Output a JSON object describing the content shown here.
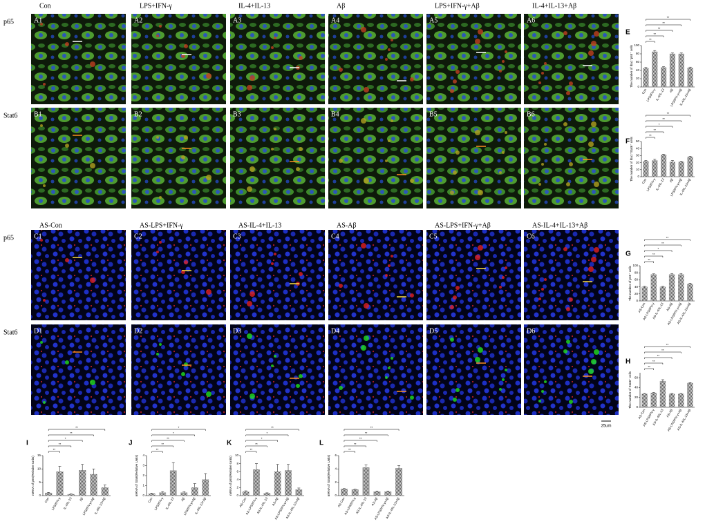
{
  "figure": {
    "top": {
      "columns": [
        "Con",
        "LPS+IFN-γ",
        "IL-4+IL-13",
        "Aβ",
        "LPS+IFN-γ+Aβ",
        "IL-4+IL-13+Aβ"
      ],
      "rows": [
        {
          "label": "p65",
          "panels": [
            "A1",
            "A2",
            "A3",
            "A4",
            "A5",
            "A6"
          ]
        },
        {
          "label": "Stat6",
          "panels": [
            "B1",
            "B2",
            "B3",
            "B4",
            "B5",
            "B6"
          ]
        }
      ]
    },
    "bottom": {
      "columns": [
        "AS-Con",
        "AS-LPS+IFN-γ",
        "AS-IL-4+IL-13",
        "AS-Aβ",
        "AS-LPS+IFN-γ+Aβ",
        "AS-IL-4+IL-13+Aβ"
      ],
      "rows": [
        {
          "label": "p65",
          "panels": [
            "C1",
            "C2",
            "C3",
            "C4",
            "C5",
            "C6"
          ]
        },
        {
          "label": "Stat6",
          "panels": [
            "D1",
            "D2",
            "D3",
            "D4",
            "D5",
            "D6"
          ]
        }
      ]
    },
    "scale_bar": "25um"
  },
  "chart_data": [
    {
      "type": "bar",
      "panel_label": "E",
      "ylabel": "The number of Iba1⁺p65⁺ cells",
      "color": "#8c8c8c",
      "categories": [
        "Con",
        "LPS/IFN-γ",
        "IL-4/IL-13",
        "Aβ",
        "LPS/IFN-γ+Aβ",
        "IL-4/IL-13+Aβ"
      ],
      "values": [
        45,
        85,
        47,
        80,
        80,
        46
      ],
      "errors": [
        2,
        3,
        2,
        2,
        2,
        2
      ],
      "ylim": [
        0,
        100
      ],
      "yticks": [
        0,
        20,
        40,
        60,
        80,
        100
      ],
      "significance": [
        "**",
        "**",
        "**",
        "**",
        "**"
      ]
    },
    {
      "type": "bar",
      "panel_label": "F",
      "ylabel": "The number of Iba1⁺Stat6⁺ cells",
      "color": "#8c8c8c",
      "categories": [
        "Con",
        "LPS/IFN-γ",
        "IL-4/IL-13",
        "Aβ",
        "LPS/IFN-γ+Aβ",
        "IL-4/IL-13+Aβ"
      ],
      "values": [
        22,
        23,
        31,
        21,
        21,
        28
      ],
      "errors": [
        1,
        2,
        1,
        2,
        1,
        1
      ],
      "ylim": [
        0,
        50
      ],
      "yticks": [
        0,
        10,
        20,
        30,
        40,
        50
      ],
      "significance": [
        "**",
        "**",
        "*",
        "**",
        "**"
      ]
    },
    {
      "type": "bar",
      "panel_label": "G",
      "ylabel": "The number of p65⁺ cells",
      "color": "#8c8c8c",
      "categories": [
        "AS-Con",
        "AS-LPS/IFN-γ",
        "AS-IL-4/IL-13",
        "AS-Aβ",
        "AS-LPS/IFN-γ+Aβ",
        "AS-IL-4/IL-13+Aβ"
      ],
      "values": [
        40,
        75,
        40,
        75,
        75,
        48
      ],
      "errors": [
        2,
        2,
        2,
        3,
        3,
        2
      ],
      "ylim": [
        0,
        100
      ],
      "yticks": [
        0,
        20,
        40,
        60,
        80,
        100
      ],
      "significance": [
        "**",
        "**",
        "*",
        "**",
        "**"
      ]
    },
    {
      "type": "bar",
      "panel_label": "H",
      "ylabel": "The number of Stat6⁺ cells",
      "color": "#8c8c8c",
      "categories": [
        "AS-Con",
        "AS-LPS/IFN-γ",
        "AS-IL-4/IL-13",
        "AS-Aβ",
        "AS-LPS/IFN-γ+Aβ",
        "AS-IL-4/IL-13+Aβ"
      ],
      "values": [
        27,
        29,
        53,
        27,
        27,
        49
      ],
      "errors": [
        1,
        1,
        3,
        1,
        1,
        1
      ],
      "ylim": [
        0,
        70
      ],
      "yticks": [
        0,
        20,
        40,
        60
      ],
      "significance": [
        "**",
        "**",
        "**",
        "**",
        "**"
      ]
    },
    {
      "type": "bar",
      "panel_label": "I",
      "ylabel": "mRNA of p65(Relative Units)",
      "color": "#8c8c8c",
      "categories": [
        "Con",
        "LPS/IFN-γ",
        "IL-4/IL-13",
        "Aβ",
        "LPS/IFN-γ+Aβ",
        "IL-4/IL-13+Aβ"
      ],
      "values": [
        1,
        9,
        0.5,
        9.5,
        8,
        3
      ],
      "errors": [
        0.2,
        2,
        0.2,
        2.2,
        2,
        1
      ],
      "ylim": [
        0,
        15
      ],
      "yticks": [
        0,
        5,
        10,
        15
      ],
      "significance": [
        "**",
        "**",
        "*",
        "**",
        "**"
      ]
    },
    {
      "type": "bar",
      "panel_label": "J",
      "ylabel": "mRNA of Stat6(Relative Units)",
      "color": "#8c8c8c",
      "categories": [
        "Con",
        "LPS/IFN-γ",
        "IL-4/IL-13",
        "Aβ",
        "LPS/IFN-γ+Aβ",
        "IL-4/IL-13+Aβ"
      ],
      "values": [
        0.2,
        0.3,
        2.5,
        0.3,
        0.8,
        1.6
      ],
      "errors": [
        0.05,
        0.1,
        0.8,
        0.1,
        0.4,
        0.6
      ],
      "ylim": [
        0,
        4
      ],
      "yticks": [
        0,
        1,
        2,
        3,
        4
      ],
      "significance": [
        "**",
        "**",
        "**",
        "*",
        "*"
      ]
    },
    {
      "type": "bar",
      "panel_label": "K",
      "ylabel": "mRNA of p65(Relative Units)",
      "color": "#8c8c8c",
      "categories": [
        "AS-Con",
        "AS-LPS/IFN-γ",
        "AS-IL-4/IL-13",
        "AS-Aβ",
        "AS-LPS/IFN-γ+Aβ",
        "AS-IL-4/IL-13+Aβ"
      ],
      "values": [
        1,
        6.5,
        0.6,
        6,
        6.3,
        1.5
      ],
      "errors": [
        0.2,
        1.5,
        0.1,
        1.8,
        1.5,
        0.4
      ],
      "ylim": [
        0,
        10
      ],
      "yticks": [
        0,
        2,
        4,
        6,
        8,
        10
      ],
      "significance": [
        "**",
        "**",
        "*",
        "*",
        "**"
      ]
    },
    {
      "type": "bar",
      "panel_label": "L",
      "ylabel": "mRNA of Stat6(Relative Units)",
      "color": "#8c8c8c",
      "categories": [
        "AS-Con",
        "AS-LPS/IFN-γ",
        "AS-IL-4/IL-13",
        "AS-Aβ",
        "AS-LPS/IFN-γ+Aβ",
        "AS-IL-4/IL-13+Aβ"
      ],
      "values": [
        1,
        0.9,
        4.2,
        0.6,
        0.6,
        4.1
      ],
      "errors": [
        0.05,
        0.1,
        0.4,
        0.1,
        0.1,
        0.4
      ],
      "ylim": [
        0,
        6
      ],
      "yticks": [
        0,
        2,
        4,
        6
      ],
      "significance": [
        "**",
        "**",
        "**",
        "**",
        "**"
      ]
    }
  ]
}
